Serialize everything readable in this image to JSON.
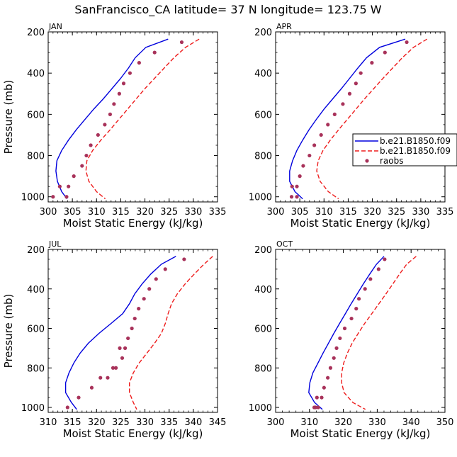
{
  "title": "SanFrancisco_CA  latitude= 37 N longitude= 123.75 W",
  "colors": {
    "model1": "#0000dd",
    "model2": "#ee1c1c",
    "raobs": "#a8325a",
    "axis": "#000000"
  },
  "legend": {
    "entries": [
      {
        "label": "b.e21.B1850.f09",
        "style": "solid",
        "color": "#0000dd"
      },
      {
        "label": "b.e21.B1850.f09",
        "style": "dashed",
        "color": "#ee1c1c"
      },
      {
        "label": "raobs",
        "style": "dot",
        "color": "#a8325a"
      }
    ]
  },
  "chart_data": [
    {
      "type": "line",
      "panel": "JAN",
      "xlabel": "Moist Static Energy (kJ/kg)",
      "ylabel": "Pressure (mb)",
      "xlim": [
        300,
        335
      ],
      "ylim": [
        200,
        1025
      ],
      "y_reversed": true,
      "xticks": [
        300,
        305,
        310,
        315,
        320,
        325,
        330,
        335
      ],
      "yticks": [
        200,
        400,
        600,
        800,
        1000
      ],
      "series": [
        {
          "name": "b.e21.B1850.f09",
          "style": "solid",
          "x": [
            324.8,
            320.2,
            318.0,
            316.6,
            315.0,
            313.2,
            311.4,
            309.4,
            307.6,
            305.8,
            304.2,
            302.8,
            301.8,
            301.6,
            301.9,
            302.8,
            303.9
          ],
          "y": [
            235,
            275,
            325,
            375,
            425,
            475,
            525,
            575,
            625,
            675,
            725,
            775,
            825,
            875,
            925,
            975,
            1010
          ]
        },
        {
          "name": "b.e21.B1850.f09",
          "style": "dashed",
          "x": [
            331.2,
            328.4,
            326.0,
            324.0,
            322.0,
            320.0,
            318.2,
            316.4,
            314.6,
            312.8,
            310.9,
            309.2,
            308.0,
            307.8,
            308.4,
            310.0,
            311.8
          ],
          "y": [
            235,
            275,
            325,
            375,
            425,
            475,
            525,
            575,
            625,
            675,
            725,
            775,
            825,
            875,
            925,
            975,
            1010
          ]
        },
        {
          "name": "raobs",
          "style": "dots",
          "x": [
            327.6,
            322.0,
            318.8,
            316.9,
            315.6,
            314.7,
            313.6,
            312.8,
            311.7,
            310.3,
            308.8,
            307.9,
            307.0,
            305.3,
            304.2,
            303.8,
            302.4,
            301.0
          ],
          "y": [
            250,
            300,
            350,
            400,
            450,
            500,
            550,
            600,
            650,
            700,
            750,
            800,
            850,
            900,
            950,
            1000,
            950,
            1000
          ]
        }
      ]
    },
    {
      "type": "line",
      "panel": "APR",
      "xlabel": "Moist Static Energy (kJ/kg)",
      "ylabel": "",
      "xlim": [
        300,
        335
      ],
      "ylim": [
        200,
        1025
      ],
      "y_reversed": true,
      "xticks": [
        300,
        305,
        310,
        315,
        320,
        325,
        330,
        335
      ],
      "yticks": [
        200,
        400,
        600,
        800,
        1000
      ],
      "series": [
        {
          "name": "b.e21.B1850.f09",
          "style": "solid",
          "x": [
            326.8,
            321.5,
            318.8,
            317.0,
            315.3,
            313.6,
            311.8,
            310.0,
            308.4,
            306.9,
            305.6,
            304.4,
            303.5,
            302.9,
            302.9,
            304.0,
            305.6
          ],
          "y": [
            235,
            275,
            325,
            375,
            425,
            475,
            525,
            575,
            625,
            675,
            725,
            775,
            825,
            875,
            925,
            975,
            1010
          ]
        },
        {
          "name": "b.e21.B1850.f09",
          "style": "dashed",
          "x": [
            331.3,
            328.5,
            326.2,
            324.2,
            322.2,
            320.3,
            318.4,
            316.6,
            314.8,
            313.0,
            311.3,
            309.8,
            308.8,
            308.5,
            309.2,
            310.9,
            313.0
          ],
          "y": [
            235,
            275,
            325,
            375,
            425,
            475,
            525,
            575,
            625,
            675,
            725,
            775,
            825,
            875,
            925,
            975,
            1010
          ]
        },
        {
          "name": "raobs",
          "style": "dots",
          "x": [
            327.1,
            322.6,
            319.9,
            317.6,
            316.6,
            315.3,
            313.9,
            312.2,
            310.8,
            309.4,
            308.0,
            307.0,
            305.7,
            305.0,
            304.4,
            304.4,
            303.4,
            303.3
          ],
          "y": [
            250,
            300,
            350,
            400,
            450,
            500,
            550,
            600,
            650,
            700,
            750,
            800,
            850,
            900,
            950,
            1000,
            950,
            1000
          ]
        }
      ]
    },
    {
      "type": "line",
      "panel": "JUL",
      "xlabel": "Moist Static Energy (kJ/kg)",
      "ylabel": "Pressure (mb)",
      "xlim": [
        310,
        345
      ],
      "ylim": [
        200,
        1025
      ],
      "y_reversed": true,
      "xticks": [
        310,
        315,
        320,
        325,
        330,
        335,
        340,
        345
      ],
      "yticks": [
        200,
        400,
        600,
        800,
        1000
      ],
      "series": [
        {
          "name": "b.e21.B1850.f09",
          "style": "solid",
          "x": [
            336.4,
            333.4,
            331.2,
            329.4,
            327.9,
            326.8,
            325.4,
            323.0,
            320.5,
            318.3,
            316.6,
            315.3,
            314.3,
            313.6,
            313.6,
            314.8,
            315.9
          ],
          "y": [
            235,
            275,
            325,
            375,
            425,
            475,
            525,
            575,
            625,
            675,
            725,
            775,
            825,
            875,
            925,
            975,
            1010
          ]
        },
        {
          "name": "b.e21.B1850.f09",
          "style": "dashed",
          "x": [
            344.0,
            342.2,
            340.2,
            338.3,
            336.7,
            335.5,
            334.8,
            334.2,
            333.4,
            332.0,
            330.4,
            328.8,
            327.6,
            326.8,
            326.8,
            327.6,
            328.3
          ],
          "y": [
            235,
            275,
            325,
            375,
            425,
            475,
            525,
            575,
            625,
            675,
            725,
            775,
            825,
            875,
            925,
            975,
            1010
          ]
        },
        {
          "name": "raobs",
          "style": "dots",
          "x": [
            338.1,
            334.2,
            332.3,
            330.9,
            329.8,
            328.7,
            327.9,
            327.3,
            326.5,
            325.9,
            325.3,
            324.8,
            324.0,
            323.4,
            322.3,
            320.8,
            319.0,
            316.3,
            314.0
          ],
          "y": [
            250,
            300,
            350,
            400,
            450,
            500,
            550,
            600,
            650,
            700,
            750,
            700,
            800,
            800,
            850,
            850,
            900,
            950,
            1000
          ]
        }
      ]
    },
    {
      "type": "line",
      "panel": "OCT",
      "xlabel": "Moist Static Energy (kJ/kg)",
      "ylabel": "",
      "xlim": [
        300,
        350
      ],
      "ylim": [
        200,
        1025
      ],
      "y_reversed": true,
      "xticks": [
        300,
        310,
        320,
        330,
        340,
        350
      ],
      "yticks": [
        200,
        400,
        600,
        800,
        1000
      ],
      "series": [
        {
          "name": "b.e21.B1850.f09",
          "style": "solid",
          "x": [
            332.0,
            329.8,
            327.8,
            325.9,
            324.1,
            322.3,
            320.6,
            318.9,
            317.2,
            315.6,
            314.0,
            312.5,
            311.0,
            310.1,
            309.8,
            311.5,
            313.8
          ],
          "y": [
            235,
            275,
            325,
            375,
            425,
            475,
            525,
            575,
            625,
            675,
            725,
            775,
            825,
            875,
            925,
            975,
            1010
          ]
        },
        {
          "name": "b.e21.B1850.f09",
          "style": "dashed",
          "x": [
            341.5,
            338.7,
            336.6,
            334.6,
            332.6,
            330.5,
            328.4,
            326.3,
            324.4,
            322.6,
            321.2,
            320.1,
            319.5,
            319.5,
            320.2,
            322.8,
            326.5
          ],
          "y": [
            235,
            275,
            325,
            375,
            425,
            475,
            525,
            575,
            625,
            675,
            725,
            775,
            825,
            875,
            925,
            975,
            1010
          ]
        },
        {
          "name": "raobs",
          "style": "dots",
          "x": [
            332.2,
            330.4,
            328.0,
            326.4,
            324.6,
            323.8,
            322.4,
            320.4,
            319.0,
            318.0,
            317.2,
            316.2,
            315.4,
            314.3,
            313.6,
            312.6,
            312.2,
            311.8,
            311.4
          ],
          "y": [
            250,
            300,
            350,
            400,
            450,
            500,
            550,
            600,
            650,
            700,
            750,
            800,
            850,
            900,
            950,
            1000,
            950,
            1000,
            1000
          ]
        }
      ]
    }
  ]
}
